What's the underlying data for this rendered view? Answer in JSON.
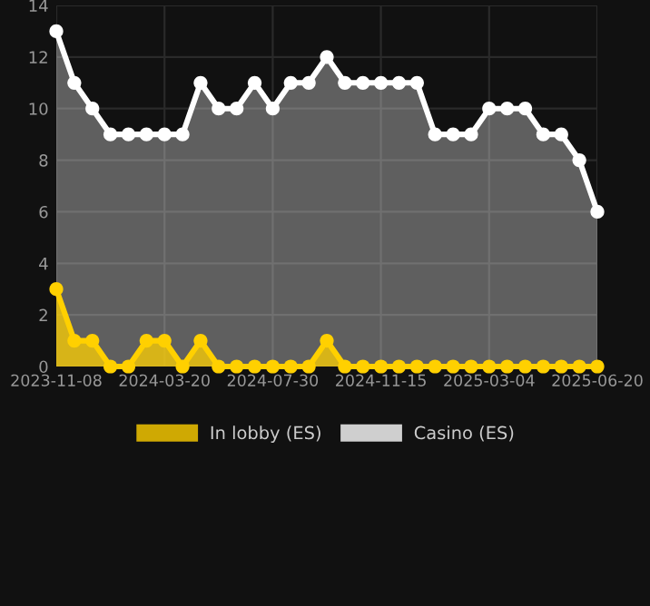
{
  "chart_data": {
    "type": "area",
    "categories": [
      "2023-11-08",
      null,
      null,
      null,
      null,
      null,
      "2024-03-20",
      null,
      null,
      null,
      null,
      null,
      "2024-07-30",
      null,
      null,
      null,
      null,
      null,
      "2024-11-15",
      null,
      null,
      null,
      null,
      null,
      "2025-03-04",
      null,
      null,
      null,
      null,
      null,
      "2025-06-20"
    ],
    "series": [
      {
        "name": "In lobby (ES)",
        "color": "#ffd000",
        "values": [
          3,
          1,
          1,
          0,
          0,
          1,
          1,
          0,
          1,
          0,
          0,
          0,
          0,
          0,
          0,
          1,
          0,
          0,
          0,
          0,
          0,
          0,
          0,
          0,
          0,
          0,
          0,
          0,
          0,
          0,
          0
        ]
      },
      {
        "name": "Casino (ES)",
        "color": "#ffffff",
        "values": [
          13,
          11,
          10,
          9,
          9,
          9,
          9,
          9,
          11,
          10,
          10,
          11,
          10,
          11,
          11,
          12,
          11,
          11,
          11,
          11,
          11,
          9,
          9,
          9,
          10,
          10,
          10,
          9,
          9,
          8,
          6
        ]
      }
    ],
    "ylim": [
      0,
      14
    ],
    "yticks": [
      0,
      2,
      4,
      6,
      8,
      10,
      12,
      14
    ],
    "grid": true,
    "legend": "bottom",
    "marker": "circle",
    "line_style": "solid"
  }
}
